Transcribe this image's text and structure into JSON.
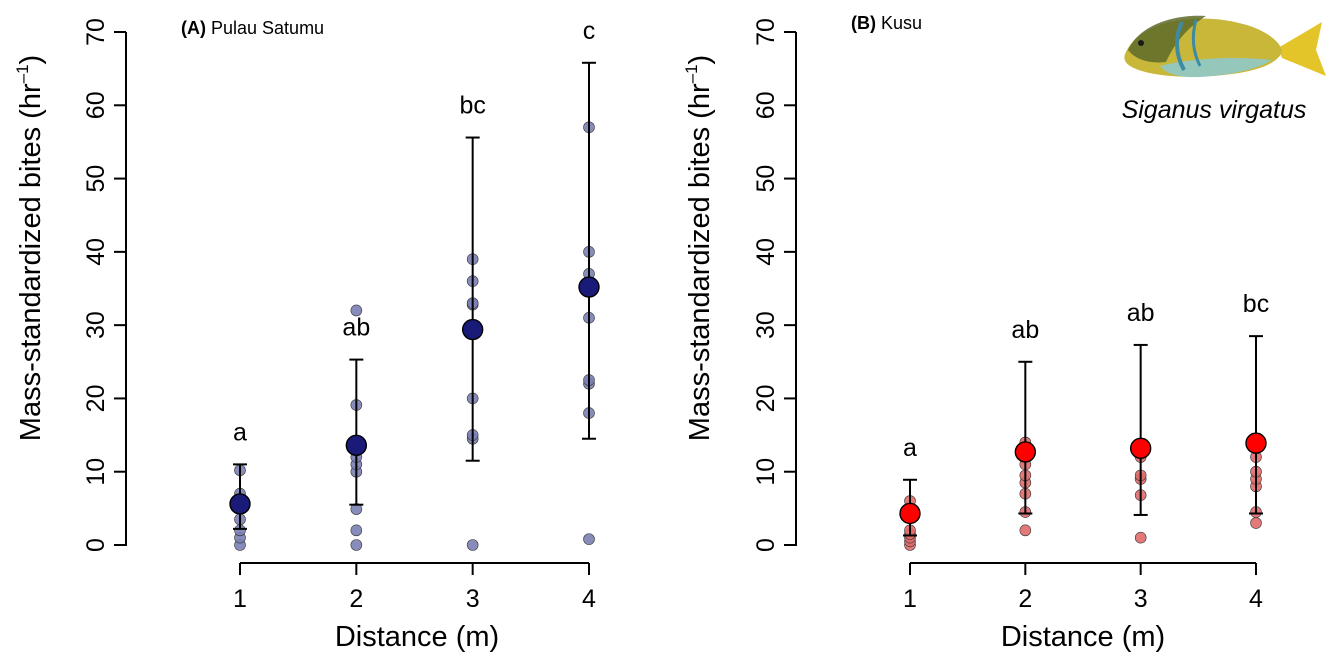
{
  "chart_data": [
    {
      "type": "scatter",
      "panel_letter": "(A)",
      "title": "Pulau Satumu",
      "xlabel": "Distance (m)",
      "ylabel": "Mass-standardized bites (hr",
      "ylabel_sup": "–1",
      "ylabel_close": ")",
      "x_ticks": [
        1,
        2,
        3,
        4
      ],
      "y_ticks": [
        0,
        10,
        20,
        30,
        40,
        50,
        60,
        70
      ],
      "ylim": [
        0,
        70
      ],
      "point_color": "#7a7fb4",
      "mean_color": "#1a1a78",
      "groups": [
        {
          "x": 1,
          "mean": 5.6,
          "lower": 2.2,
          "upper": 11.0,
          "letter": "a",
          "points": [
            0.0,
            1.0,
            2.0,
            3.5,
            5.0,
            7.0,
            10.2
          ]
        },
        {
          "x": 2,
          "mean": 13.6,
          "lower": 5.5,
          "upper": 25.3,
          "letter": "ab",
          "points": [
            0.0,
            2.0,
            4.9,
            10.0,
            11.0,
            12.0,
            19.1,
            32.0
          ]
        },
        {
          "x": 3,
          "mean": 29.4,
          "lower": 11.5,
          "upper": 55.6,
          "letter": "bc",
          "points": [
            0.0,
            14.5,
            15.0,
            20.0,
            32.8,
            33.0,
            36.0,
            39.0
          ]
        },
        {
          "x": 4,
          "mean": 35.2,
          "lower": 14.5,
          "upper": 65.8,
          "letter": "c",
          "points": [
            0.8,
            18.0,
            22.0,
            22.5,
            31.0,
            37.0,
            40.0,
            57.0
          ]
        }
      ]
    },
    {
      "type": "scatter",
      "panel_letter": "(B)",
      "title": "Kusu",
      "xlabel": "Distance (m)",
      "ylabel": "Mass-standardized bites (hr",
      "ylabel_sup": "–1",
      "ylabel_close": ")",
      "x_ticks": [
        1,
        2,
        3,
        4
      ],
      "y_ticks": [
        0,
        10,
        20,
        30,
        40,
        50,
        60,
        70
      ],
      "ylim": [
        0,
        70
      ],
      "point_color": "#e06a6a",
      "mean_color": "#ff0000",
      "groups": [
        {
          "x": 1,
          "mean": 4.3,
          "lower": 1.3,
          "upper": 8.9,
          "letter": "a",
          "points": [
            0.0,
            0.5,
            1.0,
            1.5,
            2.0,
            5.0,
            6.0
          ]
        },
        {
          "x": 2,
          "mean": 12.7,
          "lower": 4.3,
          "upper": 25.0,
          "letter": "ab",
          "points": [
            2.0,
            4.5,
            7.0,
            8.5,
            9.5,
            11.0,
            14.0
          ]
        },
        {
          "x": 3,
          "mean": 13.2,
          "lower": 4.1,
          "upper": 27.3,
          "letter": "ab",
          "points": [
            1.0,
            6.8,
            9.0,
            9.5,
            12.0,
            13.5
          ]
        },
        {
          "x": 4,
          "mean": 13.9,
          "lower": 4.3,
          "upper": 28.5,
          "letter": "bc",
          "points": [
            3.0,
            4.5,
            8.0,
            9.0,
            10.0,
            12.0,
            14.5
          ]
        }
      ]
    }
  ],
  "species_label": "Siganus virgatus",
  "fish_colors": {
    "body": "#c9b73a",
    "back": "#5e6b2a",
    "belly": "#8fc9c9",
    "tail": "#e3c52a",
    "stripe": "#3d8aa3"
  }
}
